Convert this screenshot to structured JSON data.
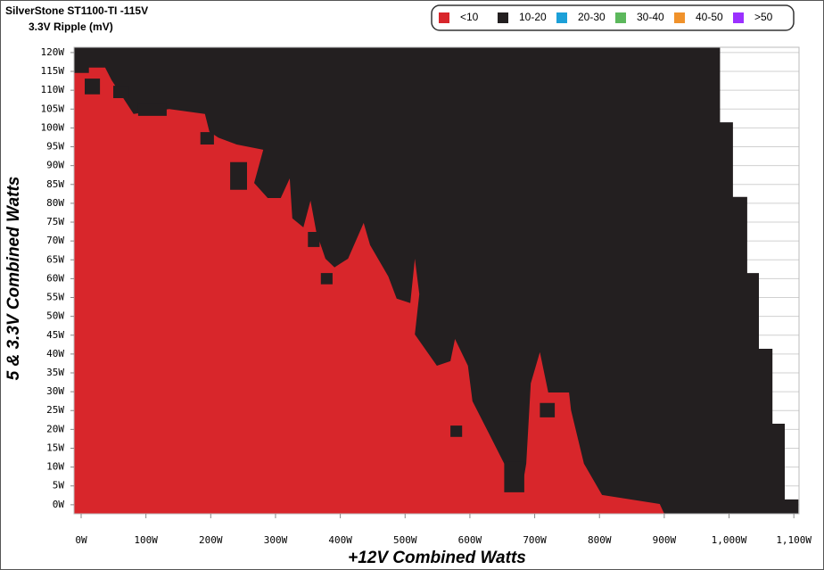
{
  "chart_data": {
    "type": "region",
    "title": "SilverStone ST1100-TI -115V",
    "subtitle": "3.3V Ripple (mV)",
    "x_label": "+12V Combined Watts",
    "y_label": "5 & 3.3V Combined Watts",
    "xlim": [
      -11,
      1108
    ],
    "ylim": [
      -2.4,
      121.4
    ],
    "grid": true,
    "legend": "top-right",
    "xticks": [
      {
        "value": 0,
        "label": "0W"
      },
      {
        "value": 100,
        "label": "100W"
      },
      {
        "value": 200,
        "label": "200W"
      },
      {
        "value": 300,
        "label": "300W"
      },
      {
        "value": 400,
        "label": "400W"
      },
      {
        "value": 500,
        "label": "500W"
      },
      {
        "value": 600,
        "label": "600W"
      },
      {
        "value": 700,
        "label": "700W"
      },
      {
        "value": 800,
        "label": "800W"
      },
      {
        "value": 900,
        "label": "900W"
      },
      {
        "value": 1000,
        "label": "1,000W"
      },
      {
        "value": 1100,
        "label": "1,100W"
      }
    ],
    "yticks": [
      {
        "value": 0,
        "label": "0W"
      },
      {
        "value": 5,
        "label": "5W"
      },
      {
        "value": 10,
        "label": "10W"
      },
      {
        "value": 15,
        "label": "15W"
      },
      {
        "value": 20,
        "label": "20W"
      },
      {
        "value": 25,
        "label": "25W"
      },
      {
        "value": 30,
        "label": "30W"
      },
      {
        "value": 35,
        "label": "35W"
      },
      {
        "value": 40,
        "label": "40W"
      },
      {
        "value": 45,
        "label": "45W"
      },
      {
        "value": 50,
        "label": "50W"
      },
      {
        "value": 55,
        "label": "55W"
      },
      {
        "value": 60,
        "label": "60W"
      },
      {
        "value": 65,
        "label": "65W"
      },
      {
        "value": 70,
        "label": "70W"
      },
      {
        "value": 75,
        "label": "75W"
      },
      {
        "value": 80,
        "label": "80W"
      },
      {
        "value": 85,
        "label": "85W"
      },
      {
        "value": 90,
        "label": "90W"
      },
      {
        "value": 95,
        "label": "95W"
      },
      {
        "value": 100,
        "label": "100W"
      },
      {
        "value": 105,
        "label": "105W"
      },
      {
        "value": 110,
        "label": "110W"
      },
      {
        "value": 115,
        "label": "115W"
      },
      {
        "value": 120,
        "label": "120W"
      }
    ],
    "series": [
      {
        "name": "<10",
        "color": "#d8262b",
        "regions": [
          {
            "x": [
              -11,
              -11,
              12,
              12,
              37,
              47,
              81,
              136,
              191,
              198,
              212,
              240,
              281,
              267,
              288,
              308,
              322,
              326,
              343,
              354,
              363,
              377,
              391,
              412,
              436,
              446,
              474,
              487,
              508,
              515,
              522,
              515,
              549,
              570,
              577,
              597,
              604,
              632,
              653,
              659,
              680,
              687,
              694,
              708,
              721,
              753,
              756,
              776,
              804,
              893,
              900
            ],
            "y": [
              -2.4,
              114.6,
              114.6,
              116,
              116,
              112.7,
              103.7,
              105,
              103.7,
              99,
              97.4,
              95.6,
              94.2,
              85.4,
              81.4,
              81.4,
              86.6,
              76,
              73.6,
              80.7,
              72.4,
              65.3,
              63,
              65.3,
              74.8,
              68.9,
              60.6,
              54.7,
              53.5,
              65.3,
              55.9,
              45.2,
              36.9,
              38.1,
              44,
              36.9,
              27.5,
              18,
              10.9,
              3.8,
              3.8,
              10.9,
              32.2,
              40.5,
              29.8,
              29.8,
              25.1,
              10.9,
              2.6,
              0.2,
              -2.4
            ]
          }
        ]
      },
      {
        "name": "10-20",
        "color": "#231f20",
        "regions": [
          {
            "x": [
              -11,
              -11,
              986,
              986,
              1006,
              1006,
              1028,
              1028,
              1046,
              1046,
              1067,
              1067,
              1086,
              1086,
              1107,
              1107
            ],
            "y": [
              -2.4,
              121.4,
              121.4,
              101.5,
              101.5,
              81.7,
              81.7,
              61.5,
              61.5,
              41.4,
              41.4,
              21.5,
              21.5,
              1.4,
              1.4,
              -2.4
            ]
          },
          {
            "x": [
              5.5,
              29,
              29,
              5.5
            ],
            "y": [
              108.9,
              108.9,
              113.1,
              113.1
            ]
          },
          {
            "x": [
              49.6,
              74,
              74,
              49.6
            ],
            "y": [
              107.9,
              107.9,
              111.2,
              111.2
            ]
          },
          {
            "x": [
              88,
              132,
              132,
              88
            ],
            "y": [
              103.2,
              103.2,
              106.7,
              106.7
            ]
          },
          {
            "x": [
              184,
              205,
              205,
              184
            ],
            "y": [
              95.6,
              95.6,
              98.9,
              98.9
            ]
          },
          {
            "x": [
              230,
              256,
              256,
              230
            ],
            "y": [
              83.6,
              83.6,
              90.9,
              90.9
            ]
          },
          {
            "x": [
              350,
              368,
              368,
              350
            ],
            "y": [
              68.4,
              68.4,
              72.4,
              72.4
            ]
          },
          {
            "x": [
              370,
              388,
              388,
              370
            ],
            "y": [
              58.5,
              58.5,
              61.5,
              61.5
            ]
          },
          {
            "x": [
              570,
              588,
              588,
              570
            ],
            "y": [
              18,
              18,
              21,
              21
            ]
          },
          {
            "x": [
              708,
              731,
              731,
              708
            ],
            "y": [
              23.2,
              23.2,
              27,
              27
            ]
          },
          {
            "x": [
              653,
              684,
              684,
              653
            ],
            "y": [
              3.3,
              3.3,
              11.4,
              11.4
            ]
          }
        ]
      },
      {
        "name": "20-30",
        "color": "#1ca0d8",
        "regions": []
      },
      {
        "name": "30-40",
        "color": "#5cb85c",
        "regions": []
      },
      {
        "name": "40-50",
        "color": "#f0922b",
        "regions": []
      },
      {
        "name": ">50",
        "color": "#9b30ff",
        "regions": []
      }
    ]
  }
}
